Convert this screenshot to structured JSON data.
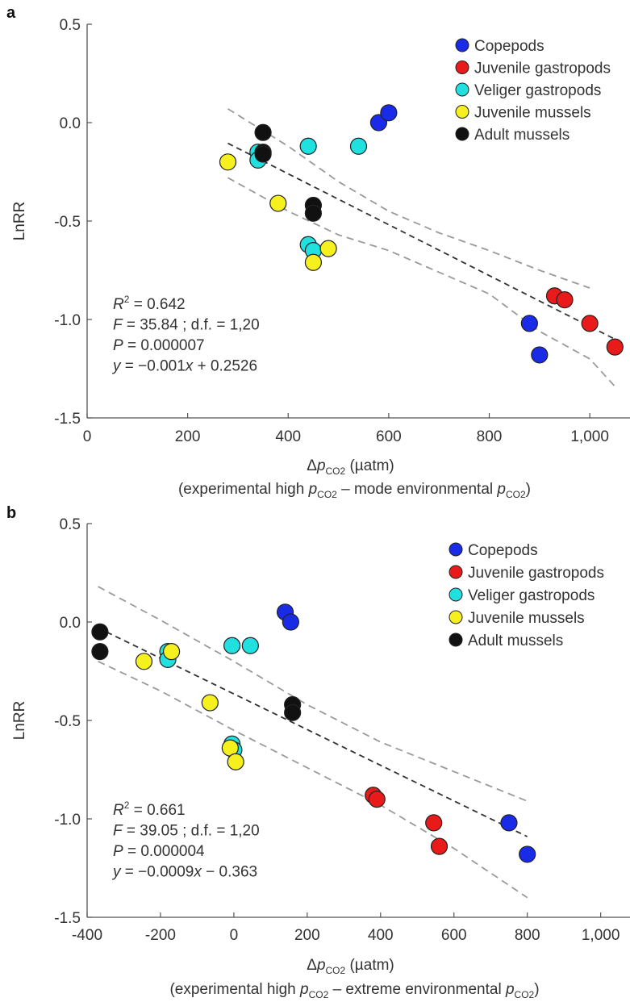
{
  "chart_data": [
    {
      "type": "scatter",
      "panel_label": "a",
      "ylabel": "LnRR",
      "xlabel_main": "Δp",
      "xlabel_sub": "CO2",
      "xlabel_unit": "(µatm)",
      "xlabel_note_pre": "(experimental high ",
      "xlabel_note_mid": " – mode environmental ",
      "xlabel_note_end": ")",
      "xlim": [
        0,
        1080
      ],
      "ylim": [
        -1.5,
        0.5
      ],
      "xticks": [
        0,
        200,
        400,
        600,
        800,
        1000
      ],
      "xtick_labels": [
        "0",
        "200",
        "400",
        "600",
        "800",
        "1,000"
      ],
      "yticks": [
        0.5,
        0.0,
        -0.5,
        -1.0,
        -1.5
      ],
      "ytick_labels": [
        "0.5",
        "0.0",
        "-0.5",
        "-1.0",
        "-1.5"
      ],
      "legend_position": "top-right",
      "series": [
        {
          "name": "Copepods",
          "color": "#1a2be8",
          "points": [
            [
              580,
              0.0
            ],
            [
              600,
              0.05
            ],
            [
              880,
              -1.02
            ],
            [
              900,
              -1.18
            ]
          ]
        },
        {
          "name": "Juvenile gastropods",
          "color": "#e81a1a",
          "points": [
            [
              930,
              -0.88
            ],
            [
              950,
              -0.9
            ],
            [
              1000,
              -1.02
            ],
            [
              1050,
              -1.14
            ]
          ]
        },
        {
          "name": "Veliger gastropods",
          "color": "#20e0e0",
          "points": [
            [
              340,
              -0.15
            ],
            [
              340,
              -0.19
            ],
            [
              440,
              -0.12
            ],
            [
              540,
              -0.12
            ],
            [
              440,
              -0.62
            ],
            [
              450,
              -0.65
            ]
          ]
        },
        {
          "name": "Juvenile mussels",
          "color": "#f5f01e",
          "points": [
            [
              280,
              -0.2
            ],
            [
              380,
              -0.41
            ],
            [
              450,
              -0.71
            ],
            [
              480,
              -0.64
            ]
          ]
        },
        {
          "name": "Adult mussels",
          "color": "#111111",
          "points": [
            [
              350,
              -0.05
            ],
            [
              350,
              -0.15
            ],
            [
              350,
              -0.16
            ],
            [
              450,
              -0.42
            ],
            [
              450,
              -0.46
            ]
          ]
        }
      ],
      "fit": {
        "x": [
          280,
          1050
        ],
        "y": [
          -0.105,
          -1.1
        ]
      },
      "ci_upper": {
        "x": [
          280,
          400,
          500,
          600,
          700,
          800,
          900,
          1000
        ],
        "y": [
          0.07,
          -0.12,
          -0.3,
          -0.45,
          -0.56,
          -0.65,
          -0.75,
          -0.84
        ]
      },
      "ci_lower": {
        "x": [
          280,
          400,
          500,
          600,
          700,
          800,
          900,
          1000,
          1050
        ],
        "y": [
          -0.28,
          -0.45,
          -0.57,
          -0.65,
          -0.76,
          -0.87,
          -1.06,
          -1.2,
          -1.34
        ]
      },
      "stats": {
        "r2_pre": "R",
        "r2_sup": "2",
        "r2_val": " = 0.642",
        "f_sym": "F",
        "f_val": " = 35.84 ; d.f. = 1,20",
        "p_sym": "P",
        "p_val": " = 0.000007",
        "eq_y": "y",
        "eq_mid": " = −0.001",
        "eq_x": "x",
        "eq_end": " + 0.2526"
      }
    },
    {
      "type": "scatter",
      "panel_label": "b",
      "ylabel": "LnRR",
      "xlabel_main": "Δp",
      "xlabel_sub": "CO2",
      "xlabel_unit": "(µatm)",
      "xlabel_note_pre": "(experimental high ",
      "xlabel_note_mid": " – extreme environmental ",
      "xlabel_note_end": ")",
      "xlim": [
        -400,
        1080
      ],
      "ylim": [
        -1.5,
        0.5
      ],
      "xticks": [
        -400,
        -200,
        0,
        200,
        400,
        600,
        800,
        1000
      ],
      "xtick_labels": [
        "-400",
        "-200",
        "0",
        "200",
        "400",
        "600",
        "800",
        "1,000"
      ],
      "yticks": [
        0.5,
        0.0,
        -0.5,
        -1.0,
        -1.5
      ],
      "ytick_labels": [
        "0.5",
        "0.0",
        "-0.5",
        "-1.0",
        "-1.5"
      ],
      "legend_position": "top-right",
      "series": [
        {
          "name": "Copepods",
          "color": "#1a2be8",
          "points": [
            [
              140,
              0.05
            ],
            [
              155,
              0.0
            ],
            [
              750,
              -1.02
            ],
            [
              800,
              -1.18
            ]
          ]
        },
        {
          "name": "Juvenile gastropods",
          "color": "#e81a1a",
          "points": [
            [
              380,
              -0.88
            ],
            [
              390,
              -0.9
            ],
            [
              545,
              -1.02
            ],
            [
              560,
              -1.14
            ]
          ]
        },
        {
          "name": "Veliger gastropods",
          "color": "#20e0e0",
          "points": [
            [
              -180,
              -0.15
            ],
            [
              -180,
              -0.19
            ],
            [
              -5,
              -0.12
            ],
            [
              45,
              -0.12
            ],
            [
              -5,
              -0.62
            ],
            [
              0,
              -0.65
            ]
          ]
        },
        {
          "name": "Juvenile mussels",
          "color": "#f5f01e",
          "points": [
            [
              -245,
              -0.2
            ],
            [
              -170,
              -0.15
            ],
            [
              -65,
              -0.41
            ],
            [
              -10,
              -0.64
            ],
            [
              5,
              -0.71
            ]
          ]
        },
        {
          "name": "Adult mussels",
          "color": "#111111",
          "points": [
            [
              -365,
              -0.05
            ],
            [
              -365,
              -0.15
            ],
            [
              160,
              -0.42
            ],
            [
              160,
              -0.46
            ]
          ]
        }
      ],
      "fit": {
        "x": [
          -370,
          800
        ],
        "y": [
          -0.03,
          -1.09
        ]
      },
      "ci_upper": {
        "x": [
          -370,
          -200,
          0,
          200,
          400,
          600,
          800
        ],
        "y": [
          0.18,
          0.01,
          -0.2,
          -0.42,
          -0.61,
          -0.76,
          -0.91
        ]
      },
      "ci_lower": {
        "x": [
          -370,
          -200,
          0,
          200,
          400,
          600,
          800
        ],
        "y": [
          -0.2,
          -0.35,
          -0.55,
          -0.74,
          -0.93,
          -1.15,
          -1.4
        ]
      },
      "stats": {
        "r2_pre": "R",
        "r2_sup": "2",
        "r2_val": " = 0.661",
        "f_sym": "F",
        "f_val": " = 39.05 ; d.f. = 1,20",
        "p_sym": "P",
        "p_val": " = 0.000004",
        "eq_y": "y",
        "eq_mid": " = −0.0009",
        "eq_x": "x",
        "eq_end": " − 0.363"
      }
    }
  ]
}
